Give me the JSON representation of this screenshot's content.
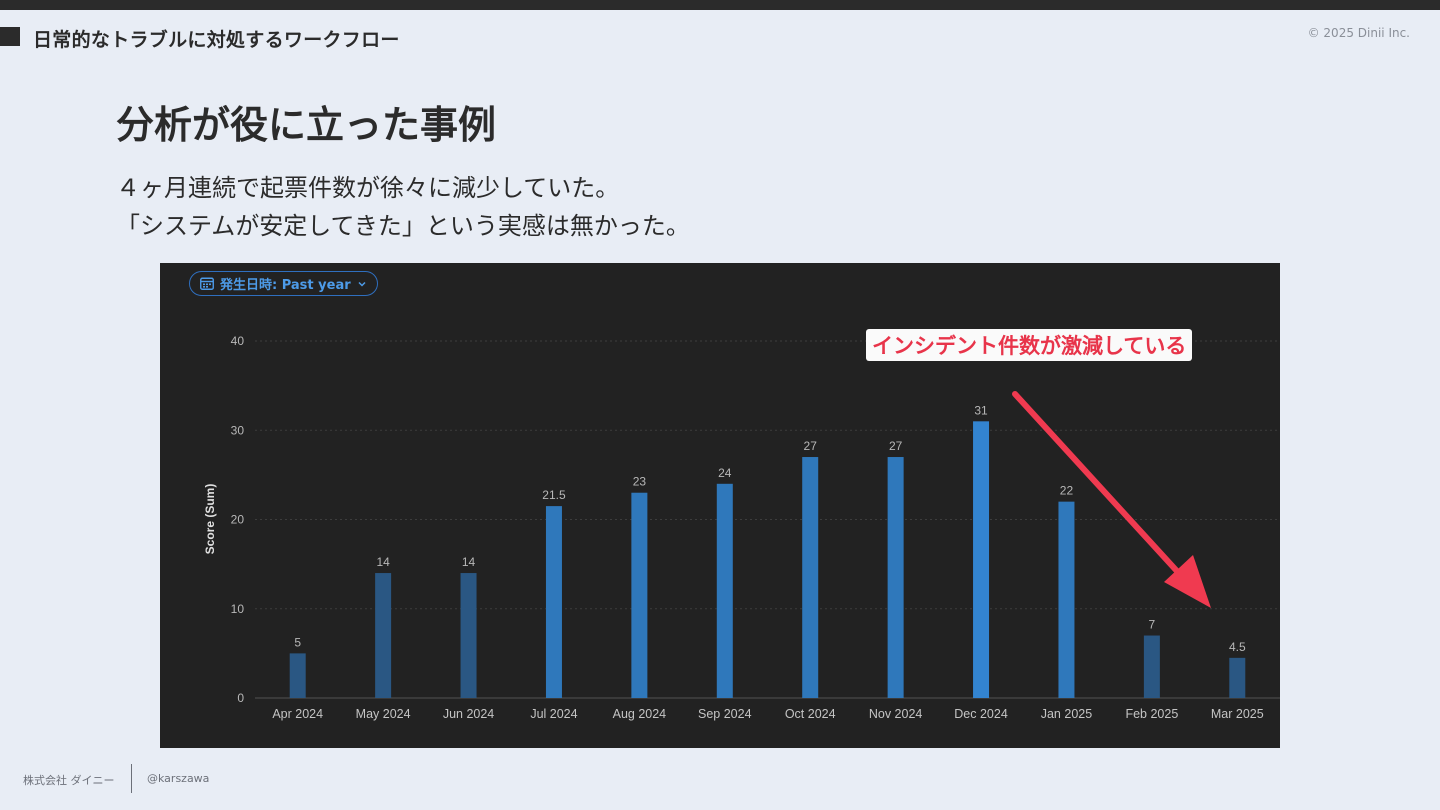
{
  "header": {
    "section_title": "日常的なトラブルに対処するワークフロー",
    "copyright": "© 2025 Dinii Inc."
  },
  "slide": {
    "title": "分析が役に立った事例",
    "body_line_1": "４ヶ月連続で起票件数が徐々に減少していた。",
    "body_line_2": "「システムが安定してきた」という実感は無かった。"
  },
  "filter": {
    "label": "発生日時: Past year",
    "icon": "calendar-icon"
  },
  "annotation": {
    "text": "インシデント件数が激減している",
    "text_color": "#e8344a",
    "arrow_color": "#f03a50"
  },
  "chart_data": {
    "type": "bar",
    "categories": [
      "Apr 2024",
      "May 2024",
      "Jun 2024",
      "Jul 2024",
      "Aug 2024",
      "Sep 2024",
      "Oct 2024",
      "Nov 2024",
      "Dec 2024",
      "Jan 2025",
      "Feb 2025",
      "Mar 2025"
    ],
    "values": [
      5,
      14,
      14,
      21.5,
      23,
      24,
      27,
      27,
      31,
      22,
      7,
      4.5
    ],
    "value_labels": [
      "5",
      "14",
      "14",
      "21.5",
      "23",
      "24",
      "27",
      "27",
      "31",
      "22",
      "7",
      "4.5"
    ],
    "title": "",
    "xlabel": "",
    "ylabel": "Score (Sum)",
    "ylim": [
      0,
      40
    ],
    "yticks": [
      "0",
      "10",
      "20",
      "30",
      "40"
    ],
    "ytick_values": [
      0,
      10,
      20,
      30,
      40
    ],
    "grid": true,
    "bar_colors": [
      "#2a5783",
      "#2a5783",
      "#2a5783",
      "#2f78bb",
      "#2f78bb",
      "#2f78bb",
      "#2f78bb",
      "#2f78bb",
      "#3384d0",
      "#2f78bb",
      "#2a5783",
      "#2a5783"
    ],
    "background": "#222222"
  },
  "footer": {
    "company": "株式会社 ダイニー",
    "handle": "@karszawa"
  }
}
